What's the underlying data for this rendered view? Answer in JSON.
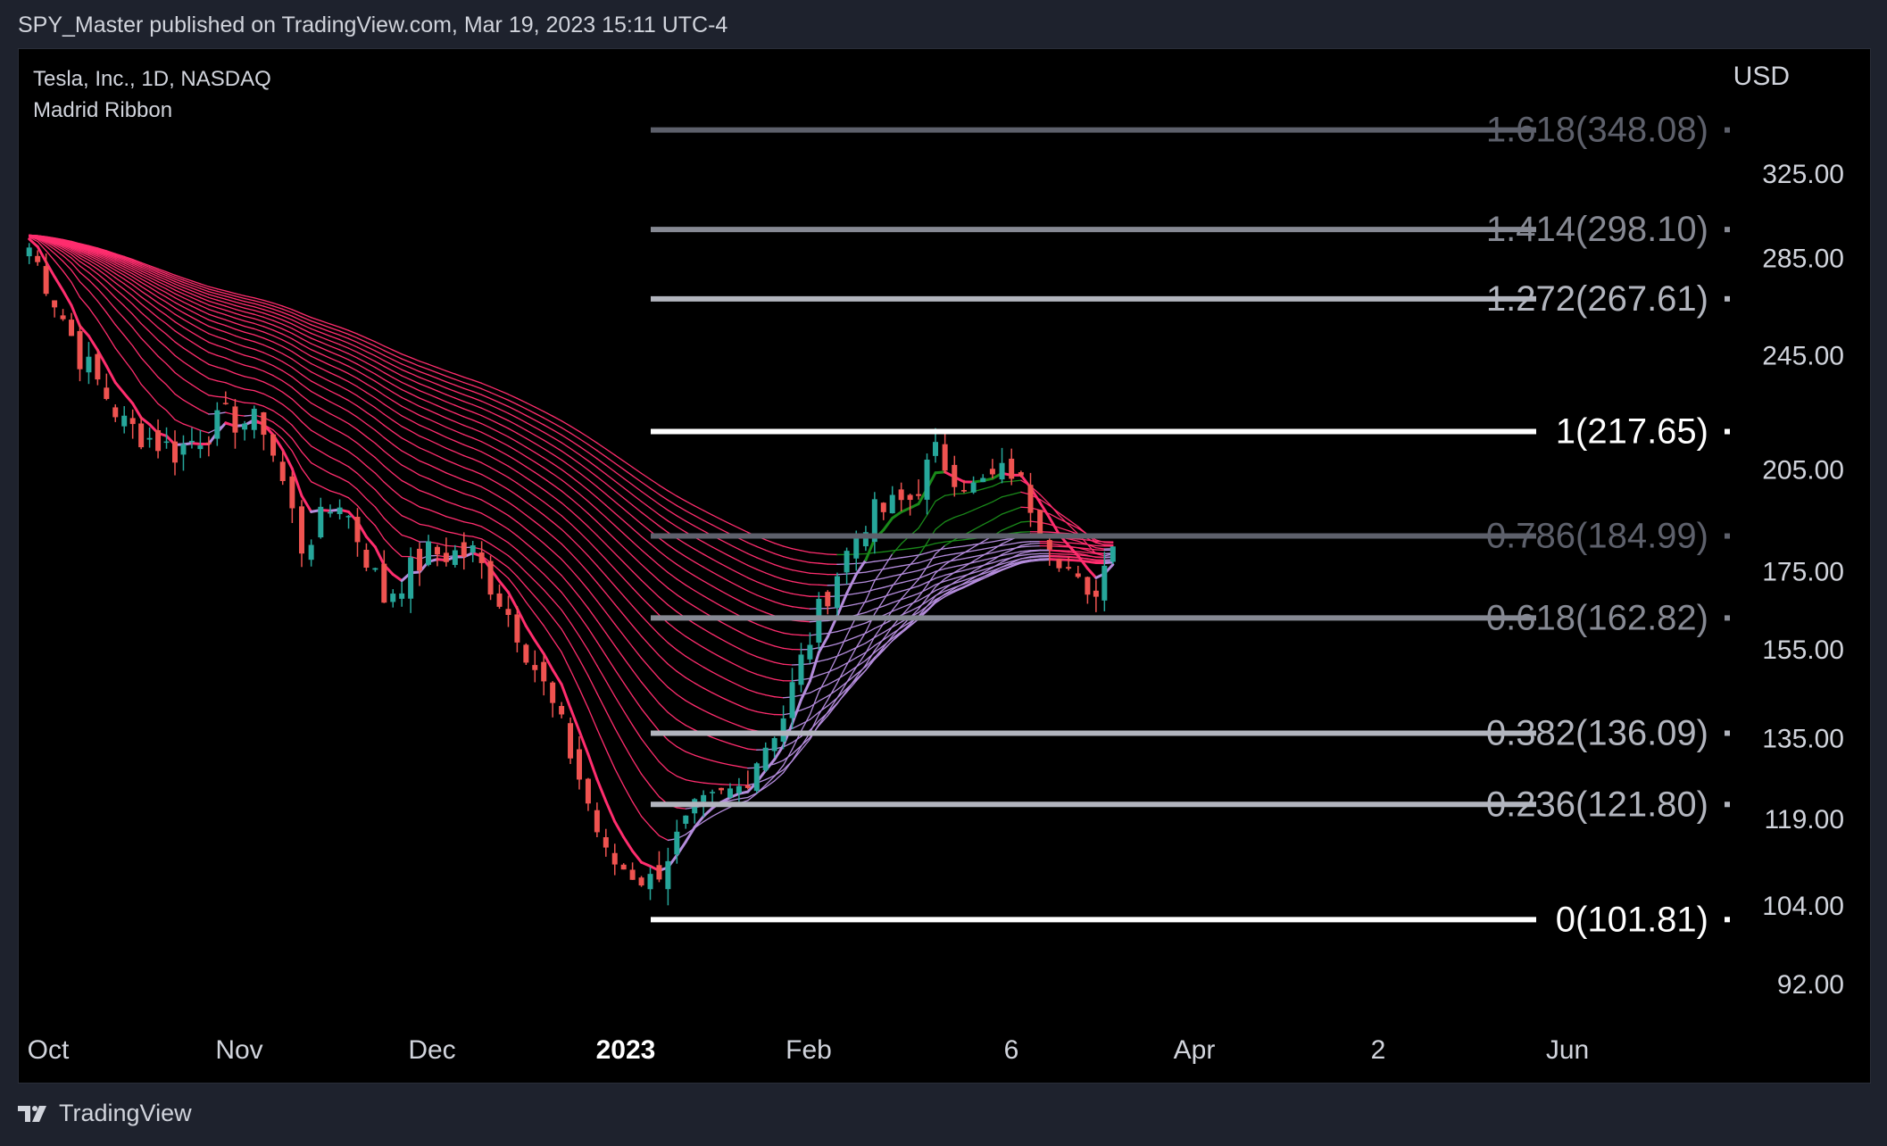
{
  "header": {
    "published": "SPY_Master published on TradingView.com, Mar 19, 2023 15:11 UTC-4"
  },
  "legend": {
    "symbol": "Tesla, Inc., 1D, NASDAQ",
    "indicator": "Madrid Ribbon"
  },
  "currency": "USD",
  "footer": {
    "brand": "TradingView",
    "logo_icon": "tradingview-logo-icon"
  },
  "colors": {
    "background": "#000000",
    "up_candle": "#26a69a",
    "down_candle": "#ef5350",
    "ribbon_bear": "#ff2d6e",
    "ribbon_bull": "#1a8a1a",
    "ribbon_transition": "#b48cdc"
  },
  "chart_data": {
    "type": "candlestick_with_fibonacci",
    "symbol": "Tesla, Inc.",
    "interval": "1D",
    "exchange": "NASDAQ",
    "indicator": "Madrid Ribbon",
    "y_axis": {
      "unit": "USD",
      "scale": "log",
      "ticks": [
        "325.00",
        "285.00",
        "245.00",
        "205.00",
        "175.00",
        "155.00",
        "135.00",
        "119.00",
        "104.00",
        "92.00"
      ]
    },
    "x_axis": {
      "ticks": [
        {
          "label": "Oct",
          "bold": false
        },
        {
          "label": "Nov",
          "bold": false
        },
        {
          "label": "Dec",
          "bold": false
        },
        {
          "label": "2023",
          "bold": true
        },
        {
          "label": "Feb",
          "bold": false
        },
        {
          "label": "6",
          "bold": false
        },
        {
          "label": "Apr",
          "bold": false
        },
        {
          "label": "2",
          "bold": false
        },
        {
          "label": "Jun",
          "bold": false
        }
      ]
    },
    "fibonacci_levels": [
      {
        "ratio": "1.618",
        "price": 348.08,
        "label": "1.618(348.08)",
        "color": "#5d606b"
      },
      {
        "ratio": "1.414",
        "price": 298.1,
        "label": "1.414(298.10)",
        "color": "#868993"
      },
      {
        "ratio": "1.272",
        "price": 267.61,
        "label": "1.272(267.61)",
        "color": "#b2b5be"
      },
      {
        "ratio": "1",
        "price": 217.65,
        "label": "1(217.65)",
        "color": "#ffffff"
      },
      {
        "ratio": "0.786",
        "price": 184.99,
        "label": "0.786(184.99)",
        "color": "#5d606b"
      },
      {
        "ratio": "0.618",
        "price": 162.82,
        "label": "0.618(162.82)",
        "color": "#868993"
      },
      {
        "ratio": "0.382",
        "price": 136.09,
        "label": "0.382(136.09)",
        "color": "#b2b5be"
      },
      {
        "ratio": "0.236",
        "price": 121.8,
        "label": "0.236(121.80)",
        "color": "#b2b5be"
      },
      {
        "ratio": "0",
        "price": 101.81,
        "label": "0(101.81)",
        "color": "#ffffff"
      }
    ],
    "price_path": [
      [
        "2022-09-27",
        290
      ],
      [
        "2022-10-05",
        245
      ],
      [
        "2022-10-12",
        220
      ],
      [
        "2022-10-20",
        211
      ],
      [
        "2022-10-28",
        222
      ],
      [
        "2022-11-03",
        220
      ],
      [
        "2022-11-09",
        182
      ],
      [
        "2022-11-15",
        196
      ],
      [
        "2022-11-22",
        168
      ],
      [
        "2022-11-29",
        180
      ],
      [
        "2022-12-06",
        180
      ],
      [
        "2022-12-13",
        160
      ],
      [
        "2022-12-20",
        137
      ],
      [
        "2022-12-27",
        112
      ],
      [
        "2023-01-03",
        108
      ],
      [
        "2023-01-10",
        120
      ],
      [
        "2023-01-17",
        125
      ],
      [
        "2023-01-24",
        140
      ],
      [
        "2023-01-31",
        170
      ],
      [
        "2023-02-06",
        190
      ],
      [
        "2023-02-13",
        196
      ],
      [
        "2023-02-17",
        210
      ],
      [
        "2023-02-23",
        199
      ],
      [
        "2023-03-01",
        205
      ],
      [
        "2023-03-07",
        185
      ],
      [
        "2023-03-13",
        166
      ],
      [
        "2023-03-17",
        182
      ]
    ]
  }
}
